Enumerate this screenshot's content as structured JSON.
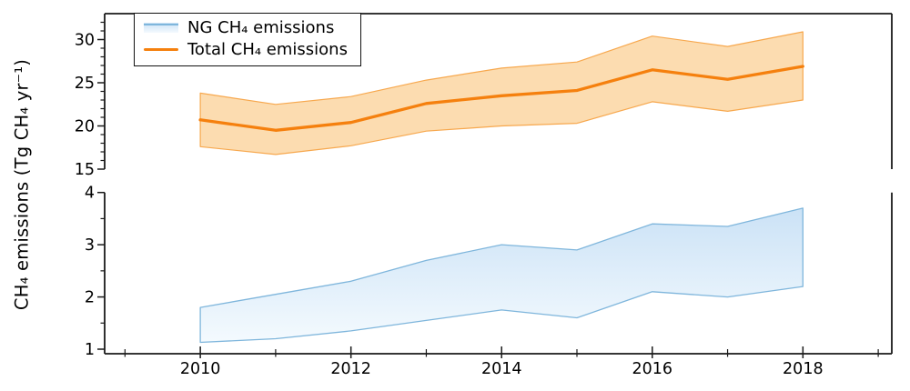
{
  "figure": {
    "ylabel": "CH₄ emissions (Tg CH₄ yr⁻¹)",
    "legend": {
      "items": [
        {
          "label": "NG CH₄ emissions",
          "swatch": "blue-band-swatch"
        },
        {
          "label": "Total CH₄ emissions",
          "swatch": "orange-line-swatch"
        }
      ]
    }
  },
  "chart_data": {
    "type": "line",
    "title": "",
    "xlabel": "",
    "ylabel": "CH₄ emissions (Tg CH₄ yr⁻¹)",
    "x": [
      2010,
      2011,
      2012,
      2013,
      2014,
      2015,
      2016,
      2017,
      2018
    ],
    "x_range": [
      2008.73,
      2019.18
    ],
    "x_ticks_major": [
      2010,
      2012,
      2014,
      2016,
      2018
    ],
    "x_ticks_minor": [
      2009,
      2011,
      2013,
      2015,
      2017,
      2019
    ],
    "grid": false,
    "legend_position": "upper-left",
    "panels": [
      {
        "id": "total",
        "y_range": [
          15,
          33
        ],
        "y_ticks_major": [
          15,
          20,
          25,
          30
        ],
        "y_ticks_minor": [
          16,
          17,
          18,
          19,
          21,
          22,
          23,
          24,
          26,
          27,
          28,
          29,
          31,
          32
        ]
      },
      {
        "id": "ng",
        "y_range": [
          0.913,
          4.0
        ],
        "y_ticks_major": [
          1,
          2,
          3,
          4
        ],
        "y_ticks_minor": [
          1.5,
          2.5,
          3.5
        ]
      }
    ],
    "series": [
      {
        "name": "NG CH₄ emissions",
        "panel": "ng",
        "style": "band",
        "upper": [
          1.8,
          2.05,
          2.3,
          2.7,
          3.0,
          2.9,
          3.4,
          3.35,
          3.7
        ],
        "lower": [
          1.13,
          1.2,
          1.35,
          1.55,
          1.75,
          1.6,
          2.1,
          2.0,
          2.2
        ]
      },
      {
        "name": "Total CH₄ emissions",
        "panel": "total",
        "style": "band+line",
        "mean": [
          20.7,
          19.5,
          20.4,
          22.6,
          23.5,
          24.1,
          26.5,
          25.4,
          26.9
        ],
        "upper": [
          23.8,
          22.5,
          23.4,
          25.3,
          26.7,
          27.4,
          30.4,
          29.2,
          30.9
        ],
        "lower": [
          17.6,
          16.7,
          17.7,
          19.4,
          20.0,
          20.3,
          22.8,
          21.7,
          23.0
        ]
      }
    ],
    "colors": {
      "total_line": "#F5800E",
      "total_band_fill": "#FCDCB0",
      "total_band_edge": "#F7A84E",
      "ng_band_edge": "#7FB6DC",
      "ng_band_fill_top": "#CBE2F6",
      "ng_band_fill_bottom": "#F4FAFE",
      "axis": "#1A1A1A",
      "text": "#000000"
    }
  }
}
